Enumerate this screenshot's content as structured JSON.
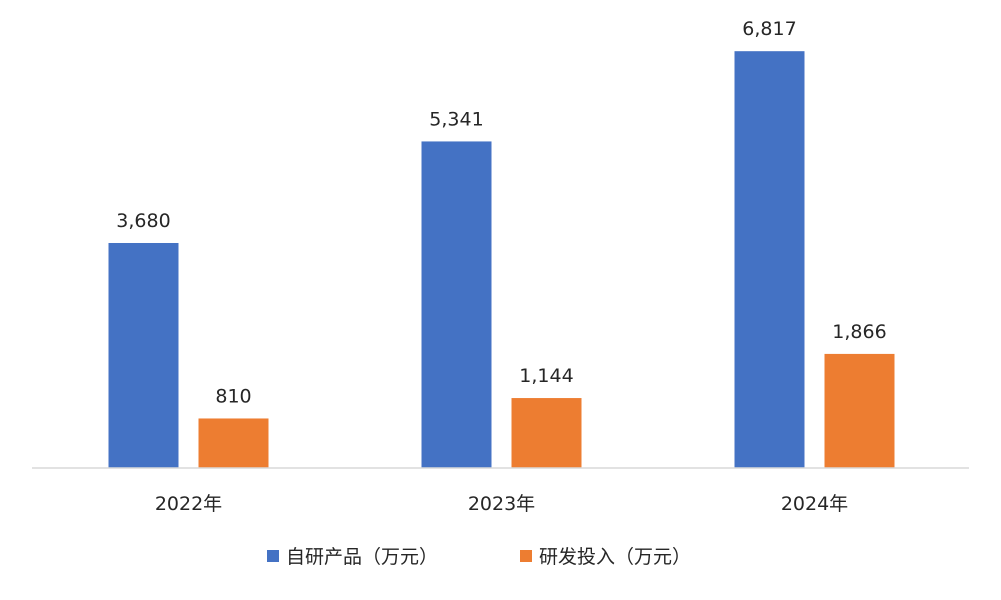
{
  "chart_data": {
    "type": "bar",
    "categories": [
      "2022年",
      "2023年",
      "2024年"
    ],
    "series": [
      {
        "name": "自研产品（万元）",
        "values": [
          3680,
          5341,
          6817
        ],
        "labels": [
          "3,680",
          "5,341",
          "6,817"
        ],
        "color": "#4472C4"
      },
      {
        "name": "研发投入（万元）",
        "values": [
          810,
          1144,
          1866
        ],
        "labels": [
          "810",
          "1,144",
          "1,866"
        ],
        "color": "#ED7D31"
      }
    ],
    "ylim": [
      0,
      7000
    ],
    "grid": false,
    "legend_position": "bottom",
    "axis_color": "#D9D9D9"
  }
}
